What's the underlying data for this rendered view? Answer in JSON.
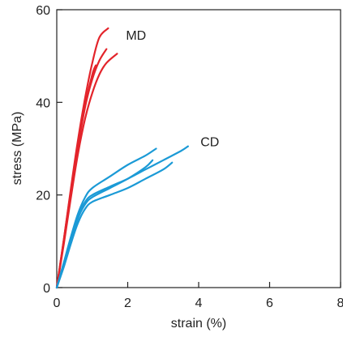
{
  "chart_data": {
    "type": "line",
    "title": "",
    "xlabel": "strain (%)",
    "ylabel": "stress (MPa)",
    "xlim": [
      0,
      8
    ],
    "ylim": [
      0,
      60
    ],
    "xticks": [
      0,
      2,
      4,
      6,
      8
    ],
    "yticks": [
      0,
      20,
      40,
      60
    ],
    "x_tick_labels": [
      "0",
      "2",
      "4",
      "6",
      "8"
    ],
    "y_tick_labels": [
      "0",
      "20",
      "40",
      "60"
    ],
    "grid": false,
    "annotations": [
      {
        "text": "MD",
        "x": 1.95,
        "y": 53.5
      },
      {
        "text": "CD",
        "x": 4.05,
        "y": 30.5
      }
    ],
    "series": [
      {
        "group": "MD",
        "color": "#e3242b",
        "x": [
          0,
          0.2,
          0.4,
          0.6,
          0.8,
          1.0,
          1.2,
          1.45
        ],
        "y": [
          0,
          10.5,
          21.5,
          32.0,
          41.0,
          48.5,
          54.0,
          56.0
        ]
      },
      {
        "group": "MD",
        "color": "#e3242b",
        "x": [
          0,
          0.2,
          0.4,
          0.6,
          0.8,
          1.0,
          1.2,
          1.4
        ],
        "y": [
          0,
          10.0,
          20.5,
          30.5,
          39.0,
          45.0,
          49.0,
          51.5
        ]
      },
      {
        "group": "MD",
        "color": "#e3242b",
        "x": [
          0,
          0.2,
          0.4,
          0.6,
          0.8,
          1.0,
          1.2,
          1.4,
          1.7
        ],
        "y": [
          0,
          9.5,
          19.5,
          29.0,
          36.5,
          42.0,
          46.0,
          48.5,
          50.5
        ]
      },
      {
        "group": "MD",
        "color": "#e3242b",
        "x": [
          0,
          0.2,
          0.4,
          0.6,
          0.8,
          1.0,
          1.1
        ],
        "y": [
          0,
          10.5,
          21.0,
          31.0,
          39.5,
          46.0,
          48.0
        ]
      },
      {
        "group": "CD",
        "color": "#1b9ad6",
        "x": [
          0,
          0.2,
          0.4,
          0.6,
          0.8,
          1.0,
          1.5,
          2.0,
          2.5,
          2.8
        ],
        "y": [
          0,
          5.5,
          11.0,
          16.0,
          19.5,
          21.5,
          24.0,
          26.5,
          28.5,
          30.0
        ]
      },
      {
        "group": "CD",
        "color": "#1b9ad6",
        "x": [
          0,
          0.2,
          0.4,
          0.6,
          0.8,
          1.0,
          1.5,
          2.0,
          2.5,
          3.0,
          3.5,
          3.7
        ],
        "y": [
          0,
          5.0,
          10.5,
          15.5,
          18.5,
          20.0,
          21.8,
          23.5,
          25.5,
          27.5,
          29.5,
          30.5
        ]
      },
      {
        "group": "CD",
        "color": "#1b9ad6",
        "x": [
          0,
          0.2,
          0.4,
          0.6,
          0.8,
          1.0,
          1.5,
          2.0,
          2.5,
          2.7
        ],
        "y": [
          0,
          5.0,
          10.0,
          15.0,
          18.0,
          19.5,
          21.5,
          23.5,
          26.0,
          27.5
        ]
      },
      {
        "group": "CD",
        "color": "#1b9ad6",
        "x": [
          0,
          0.2,
          0.4,
          0.6,
          0.8,
          1.0,
          1.5,
          2.0,
          2.5,
          3.0,
          3.25
        ],
        "y": [
          0,
          4.5,
          9.5,
          14.0,
          17.0,
          18.5,
          20.0,
          21.5,
          23.5,
          25.5,
          27.0
        ]
      }
    ]
  }
}
